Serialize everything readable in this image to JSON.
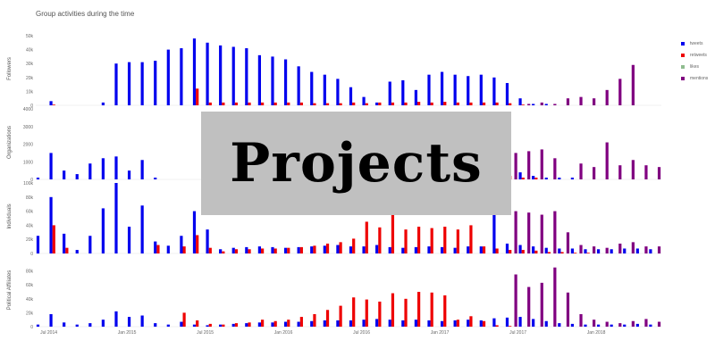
{
  "page": {
    "title": "Group activities during the time"
  },
  "overlay": {
    "label": "Projects"
  },
  "legend": [
    {
      "name": "tweets",
      "color": "#0000ee"
    },
    {
      "name": "retweets",
      "color": "#ee0000"
    },
    {
      "name": "likes",
      "color": "#8fbc8f"
    },
    {
      "name": "mentions",
      "color": "#800080"
    }
  ],
  "chart_data": {
    "type": "bar",
    "grouping": "grouped",
    "legend_position": "top-right",
    "grid": false,
    "x": [
      "2014-06",
      "2014-07",
      "2014-08",
      "2014-09",
      "2014-10",
      "2014-11",
      "2014-12",
      "2015-01",
      "2015-02",
      "2015-03",
      "2015-04",
      "2015-05",
      "2015-06",
      "2015-07",
      "2015-08",
      "2015-09",
      "2015-10",
      "2015-11",
      "2015-12",
      "2016-01",
      "2016-02",
      "2016-03",
      "2016-04",
      "2016-05",
      "2016-06",
      "2016-07",
      "2016-08",
      "2016-09",
      "2016-10",
      "2016-11",
      "2016-12",
      "2017-01",
      "2017-02",
      "2017-03",
      "2017-04",
      "2017-05",
      "2017-06",
      "2017-07",
      "2017-08",
      "2017-09",
      "2017-10",
      "2017-11",
      "2017-12",
      "2018-01",
      "2018-02",
      "2018-03",
      "2018-04",
      "2018-05"
    ],
    "xticks": [
      {
        "label": "Jul 2014",
        "x": "2014-07"
      },
      {
        "label": "Jan 2015",
        "x": "2015-01"
      },
      {
        "label": "Jul 2015",
        "x": "2015-07"
      },
      {
        "label": "Jan 2016",
        "x": "2016-01"
      },
      {
        "label": "Jul 2016",
        "x": "2016-07"
      },
      {
        "label": "Jan 2017",
        "x": "2017-01"
      },
      {
        "label": "Jul 2017",
        "x": "2017-07"
      },
      {
        "label": "Jan 2018",
        "x": "2018-01"
      }
    ],
    "panels": [
      {
        "ylabel": "Followers",
        "ylim": [
          0,
          50000
        ],
        "yticks": [
          {
            "label": "0",
            "value": 0
          },
          {
            "label": "10k",
            "value": 10000
          },
          {
            "label": "20k",
            "value": 20000
          },
          {
            "label": "30k",
            "value": 30000
          },
          {
            "label": "40k",
            "value": 40000
          },
          {
            "label": "50k",
            "value": 50000
          }
        ],
        "series": [
          {
            "name": "tweets",
            "values": [
              0,
              3000,
              0,
              0,
              0,
              2000,
              30000,
              31000,
              31000,
              32000,
              40000,
              41000,
              48000,
              45000,
              43000,
              42000,
              41000,
              36000,
              35000,
              33000,
              28000,
              24000,
              22000,
              19000,
              13000,
              6000,
              2000,
              17000,
              18000,
              11000,
              22000,
              24000,
              22000,
              21000,
              22000,
              20000,
              16000,
              5000,
              1000,
              1000,
              0,
              0,
              0,
              0,
              0,
              0,
              0,
              0
            ]
          },
          {
            "name": "retweets",
            "values": [
              0,
              500,
              0,
              0,
              0,
              0,
              0,
              0,
              0,
              0,
              0,
              0,
              12000,
              2000,
              2000,
              2000,
              2000,
              2000,
              2000,
              2000,
              2000,
              1500,
              1500,
              1500,
              2000,
              1500,
              2000,
              2000,
              2000,
              2500,
              2000,
              2500,
              2000,
              2000,
              2000,
              2000,
              1500,
              500,
              0,
              0,
              0,
              0,
              0,
              0,
              0,
              0,
              0,
              0
            ]
          },
          {
            "name": "likes",
            "values": [
              0,
              0,
              0,
              0,
              0,
              0,
              0,
              0,
              0,
              0,
              0,
              0,
              0,
              0,
              0,
              0,
              0,
              0,
              0,
              0,
              0,
              0,
              0,
              0,
              0,
              0,
              0,
              0,
              0,
              0,
              0,
              0,
              0,
              0,
              0,
              0,
              0,
              0,
              0,
              0,
              0,
              0,
              0,
              0,
              0,
              0,
              0,
              0
            ]
          },
          {
            "name": "mentions",
            "values": [
              0,
              0,
              0,
              0,
              0,
              0,
              0,
              0,
              0,
              0,
              0,
              0,
              0,
              0,
              0,
              0,
              0,
              0,
              0,
              0,
              0,
              0,
              0,
              0,
              0,
              0,
              0,
              0,
              0,
              0,
              0,
              0,
              0,
              0,
              0,
              0,
              0,
              1000,
              2000,
              1000,
              5000,
              6000,
              5000,
              11000,
              19000,
              29000,
              0,
              0
            ]
          }
        ]
      },
      {
        "ylabel": "Organizations",
        "ylim": [
          0,
          4000
        ],
        "yticks": [
          {
            "label": "0",
            "value": 0
          },
          {
            "label": "1000",
            "value": 1000
          },
          {
            "label": "2000",
            "value": 2000
          },
          {
            "label": "3000",
            "value": 3000
          },
          {
            "label": "4000",
            "value": 4000
          }
        ],
        "series": [
          {
            "name": "tweets",
            "values": [
              100,
              1500,
              500,
              300,
              900,
              1200,
              1300,
              500,
              1100,
              100,
              0,
              0,
              0,
              0,
              0,
              0,
              0,
              0,
              0,
              0,
              0,
              0,
              0,
              0,
              0,
              0,
              0,
              0,
              0,
              0,
              0,
              0,
              0,
              0,
              0,
              0,
              400,
              400,
              200,
              100,
              100,
              100,
              0,
              0,
              0,
              0,
              0,
              0
            ]
          },
          {
            "name": "retweets",
            "values": [
              0,
              0,
              0,
              0,
              0,
              0,
              0,
              0,
              0,
              0,
              0,
              0,
              0,
              0,
              0,
              0,
              0,
              0,
              0,
              0,
              0,
              0,
              0,
              0,
              0,
              0,
              0,
              0,
              0,
              0,
              0,
              0,
              0,
              0,
              0,
              0,
              200,
              100,
              100,
              0,
              0,
              0,
              0,
              0,
              0,
              0,
              0,
              0
            ]
          },
          {
            "name": "likes",
            "values": [
              0,
              0,
              0,
              0,
              0,
              0,
              0,
              0,
              0,
              0,
              0,
              0,
              0,
              0,
              0,
              0,
              0,
              0,
              0,
              0,
              0,
              0,
              0,
              0,
              0,
              0,
              0,
              0,
              0,
              0,
              0,
              0,
              0,
              0,
              0,
              0,
              0,
              0,
              0,
              0,
              0,
              0,
              0,
              0,
              0,
              0,
              0,
              0
            ]
          },
          {
            "name": "mentions",
            "values": [
              0,
              0,
              0,
              0,
              0,
              0,
              0,
              0,
              0,
              0,
              0,
              0,
              0,
              0,
              0,
              0,
              0,
              0,
              0,
              0,
              0,
              0,
              0,
              0,
              0,
              0,
              0,
              0,
              0,
              0,
              0,
              0,
              0,
              0,
              0,
              0,
              1500,
              1600,
              1700,
              1200,
              0,
              900,
              700,
              2100,
              800,
              1100,
              800,
              700
            ]
          }
        ]
      },
      {
        "ylabel": "Individuals",
        "ylim": [
          0,
          100000
        ],
        "yticks": [
          {
            "label": "0",
            "value": 0
          },
          {
            "label": "20k",
            "value": 20000
          },
          {
            "label": "40k",
            "value": 40000
          },
          {
            "label": "60k",
            "value": 60000
          },
          {
            "label": "80k",
            "value": 80000
          },
          {
            "label": "100k",
            "value": 100000
          }
        ],
        "series": [
          {
            "name": "tweets",
            "values": [
              25000,
              80000,
              28000,
              5000,
              25000,
              64000,
              100000,
              38000,
              68000,
              17000,
              11000,
              25000,
              60000,
              34000,
              6000,
              8000,
              9000,
              10000,
              9000,
              8000,
              9000,
              10000,
              11000,
              12000,
              10000,
              10000,
              12000,
              9000,
              8000,
              9000,
              10000,
              9000,
              8000,
              10000,
              10000,
              62000,
              14000,
              12000,
              10000,
              8000,
              7000,
              7000,
              6000,
              6000,
              6000,
              7000,
              7000,
              6000
            ]
          },
          {
            "name": "retweets",
            "values": [
              0,
              40000,
              8000,
              0,
              0,
              0,
              0,
              0,
              0,
              12000,
              0,
              10000,
              26000,
              8000,
              3000,
              6000,
              6000,
              7000,
              7000,
              8000,
              9000,
              11000,
              14000,
              16000,
              21000,
              45000,
              37000,
              55000,
              34000,
              38000,
              36000,
              38000,
              34000,
              40000,
              10000,
              7000,
              5000,
              5000,
              4000,
              2000,
              2000,
              1000,
              1000,
              0,
              0,
              0,
              0,
              0
            ]
          },
          {
            "name": "likes",
            "values": [
              0,
              0,
              0,
              0,
              0,
              0,
              0,
              0,
              0,
              0,
              0,
              0,
              0,
              0,
              0,
              0,
              0,
              0,
              0,
              0,
              0,
              0,
              0,
              0,
              0,
              0,
              0,
              0,
              0,
              0,
              0,
              0,
              0,
              0,
              0,
              0,
              0,
              0,
              0,
              0,
              0,
              0,
              0,
              0,
              0,
              0,
              0,
              0
            ]
          },
          {
            "name": "mentions",
            "values": [
              0,
              0,
              0,
              0,
              0,
              0,
              0,
              0,
              0,
              0,
              0,
              0,
              0,
              0,
              0,
              0,
              0,
              0,
              0,
              0,
              0,
              0,
              0,
              0,
              0,
              0,
              0,
              0,
              0,
              0,
              0,
              0,
              0,
              0,
              0,
              0,
              60000,
              58000,
              55000,
              60000,
              30000,
              12000,
              10000,
              8000,
              14000,
              16000,
              10000,
              10000
            ]
          }
        ]
      },
      {
        "ylabel": "Political Affiliates",
        "ylim": [
          0,
          100000
        ],
        "yticks": [
          {
            "label": "0",
            "value": 0
          },
          {
            "label": "20k",
            "value": 20000
          },
          {
            "label": "40k",
            "value": 40000
          },
          {
            "label": "60k",
            "value": 60000
          },
          {
            "label": "80k",
            "value": 80000
          }
        ],
        "series": [
          {
            "name": "tweets",
            "values": [
              3000,
              18000,
              6000,
              3000,
              5000,
              10000,
              22000,
              14000,
              16000,
              5000,
              3000,
              7000,
              3000,
              2000,
              3000,
              4000,
              5000,
              6000,
              6000,
              7000,
              7000,
              8000,
              9000,
              9000,
              9000,
              10000,
              11000,
              10000,
              9000,
              10000,
              9000,
              8000,
              9000,
              10000,
              9000,
              12000,
              13000,
              14000,
              11000,
              8000,
              5000,
              4000,
              3000,
              3000,
              3000,
              3000,
              4000,
              3000
            ]
          },
          {
            "name": "retweets",
            "values": [
              0,
              0,
              0,
              0,
              0,
              0,
              0,
              0,
              0,
              0,
              0,
              20000,
              9000,
              4000,
              3000,
              5000,
              6000,
              10000,
              8000,
              10000,
              14000,
              18000,
              24000,
              30000,
              42000,
              39000,
              36000,
              48000,
              40000,
              50000,
              49000,
              45000,
              10000,
              15000,
              8000,
              2000,
              1000,
              0,
              0,
              0,
              0,
              0,
              0,
              0,
              0,
              0,
              0,
              0
            ]
          },
          {
            "name": "likes",
            "values": [
              0,
              0,
              0,
              0,
              0,
              0,
              0,
              0,
              0,
              0,
              0,
              0,
              0,
              0,
              0,
              0,
              0,
              0,
              0,
              0,
              0,
              0,
              0,
              0,
              0,
              0,
              0,
              0,
              0,
              0,
              0,
              0,
              0,
              0,
              0,
              0,
              0,
              0,
              0,
              0,
              0,
              0,
              0,
              0,
              0,
              0,
              0,
              0
            ]
          },
          {
            "name": "mentions",
            "values": [
              0,
              0,
              0,
              0,
              0,
              0,
              0,
              0,
              0,
              0,
              0,
              0,
              0,
              0,
              0,
              0,
              0,
              0,
              0,
              0,
              0,
              0,
              0,
              0,
              0,
              0,
              0,
              0,
              0,
              0,
              0,
              0,
              0,
              0,
              0,
              0,
              75000,
              57000,
              63000,
              85000,
              49000,
              18000,
              10000,
              7000,
              5000,
              8000,
              11000,
              7000
            ]
          }
        ]
      }
    ]
  }
}
